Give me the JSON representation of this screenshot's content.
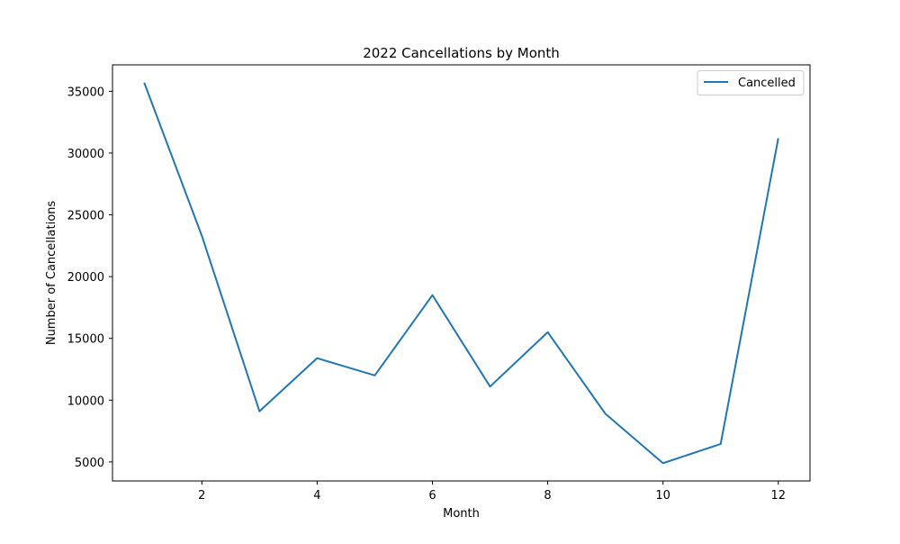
{
  "chart_data": {
    "type": "line",
    "title": "2022 Cancellations by Month",
    "xlabel": "Month",
    "ylabel": "Number of Cancellations",
    "x": [
      1,
      2,
      3,
      4,
      5,
      6,
      7,
      8,
      9,
      10,
      11,
      12
    ],
    "series": [
      {
        "name": "Cancelled",
        "color": "#1f77b4",
        "values": [
          35700,
          23300,
          9100,
          13400,
          12000,
          18500,
          11100,
          15500,
          8900,
          4900,
          6450,
          31200
        ]
      }
    ],
    "xlim": [
      0.45,
      12.55
    ],
    "ylim": [
      3460,
      37140
    ],
    "xticks": [
      2,
      4,
      6,
      8,
      10,
      12
    ],
    "yticks": [
      5000,
      10000,
      15000,
      20000,
      25000,
      30000,
      35000
    ],
    "xtick_labels": [
      "2",
      "4",
      "6",
      "8",
      "10",
      "12"
    ],
    "ytick_labels": [
      "5000",
      "10000",
      "15000",
      "20000",
      "25000",
      "30000",
      "35000"
    ],
    "grid": false,
    "legend_position": "top-right"
  }
}
